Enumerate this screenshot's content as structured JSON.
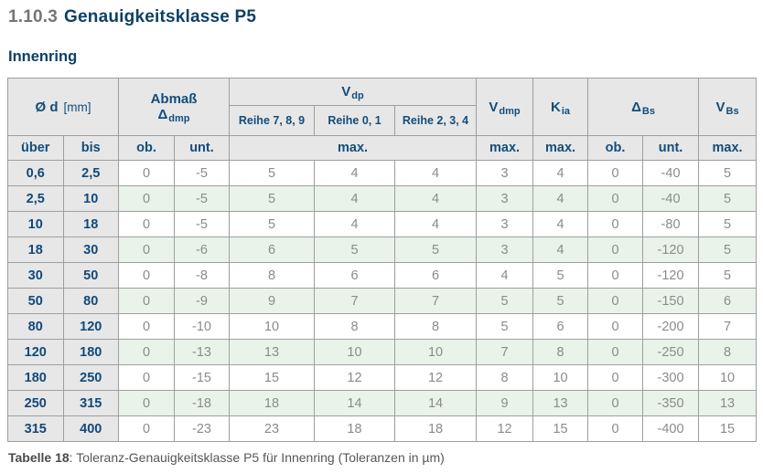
{
  "title": {
    "number": "1.10.3",
    "text": "Genauigkeitsklasse P5"
  },
  "subtitle": "Innenring",
  "caption": {
    "label": "Tabelle 18",
    "text": ": Toleranz-Genauigkeitsklasse P5 für Innenring (Toleranzen in µm)"
  },
  "colors": {
    "heading_blue": "#0d4066",
    "table_header_blue": "#134d7c",
    "row_label_blue": "#11497a",
    "section_number_gray": "#757575",
    "header_bg": "#e7e7e7",
    "row_alt_green": "#eaf3ea",
    "row_white": "#ffffff",
    "data_text_gray": "#8b8b8b",
    "border_gray": "#9e9e9e",
    "caption_gray": "#575757"
  },
  "table": {
    "groups": {
      "diameter": {
        "symbol": "Ø d",
        "unit": "[mm]"
      },
      "abmass": {
        "title": "Abmaß",
        "delta": "Δ",
        "delta_sub": "dmp"
      },
      "vdp": {
        "base": "V",
        "sub": "dp"
      },
      "vdp_series": [
        "Reihe 7, 8, 9",
        "Reihe 0, 1",
        "Reihe 2, 3, 4"
      ],
      "vdmp": {
        "base": "V",
        "sub": "dmp"
      },
      "kia": {
        "base": "K",
        "sub": "ia"
      },
      "dbs": {
        "base": "Δ",
        "sub": "Bs"
      },
      "vbs": {
        "base": "V",
        "sub": "Bs"
      }
    },
    "subheader": [
      "über",
      "bis",
      "ob.",
      "unt.",
      "max.",
      "max.",
      "max.",
      "ob.",
      "unt.",
      "max."
    ],
    "rows": [
      [
        "0,6",
        "2,5",
        "0",
        "-5",
        "5",
        "4",
        "4",
        "3",
        "4",
        "0",
        "-40",
        "5"
      ],
      [
        "2,5",
        "10",
        "0",
        "-5",
        "5",
        "4",
        "4",
        "3",
        "4",
        "0",
        "-40",
        "5"
      ],
      [
        "10",
        "18",
        "0",
        "-5",
        "5",
        "4",
        "4",
        "3",
        "4",
        "0",
        "-80",
        "5"
      ],
      [
        "18",
        "30",
        "0",
        "-6",
        "6",
        "5",
        "5",
        "3",
        "4",
        "0",
        "-120",
        "5"
      ],
      [
        "30",
        "50",
        "0",
        "-8",
        "8",
        "6",
        "6",
        "4",
        "5",
        "0",
        "-120",
        "5"
      ],
      [
        "50",
        "80",
        "0",
        "-9",
        "9",
        "7",
        "7",
        "5",
        "5",
        "0",
        "-150",
        "6"
      ],
      [
        "80",
        "120",
        "0",
        "-10",
        "10",
        "8",
        "8",
        "5",
        "6",
        "0",
        "-200",
        "7"
      ],
      [
        "120",
        "180",
        "0",
        "-13",
        "13",
        "10",
        "10",
        "7",
        "8",
        "0",
        "-250",
        "8"
      ],
      [
        "180",
        "250",
        "0",
        "-15",
        "15",
        "12",
        "12",
        "8",
        "10",
        "0",
        "-300",
        "10"
      ],
      [
        "250",
        "315",
        "0",
        "-18",
        "18",
        "14",
        "14",
        "9",
        "13",
        "0",
        "-350",
        "13"
      ],
      [
        "315",
        "400",
        "0",
        "-23",
        "23",
        "18",
        "18",
        "12",
        "15",
        "0",
        "-400",
        "15"
      ]
    ]
  }
}
